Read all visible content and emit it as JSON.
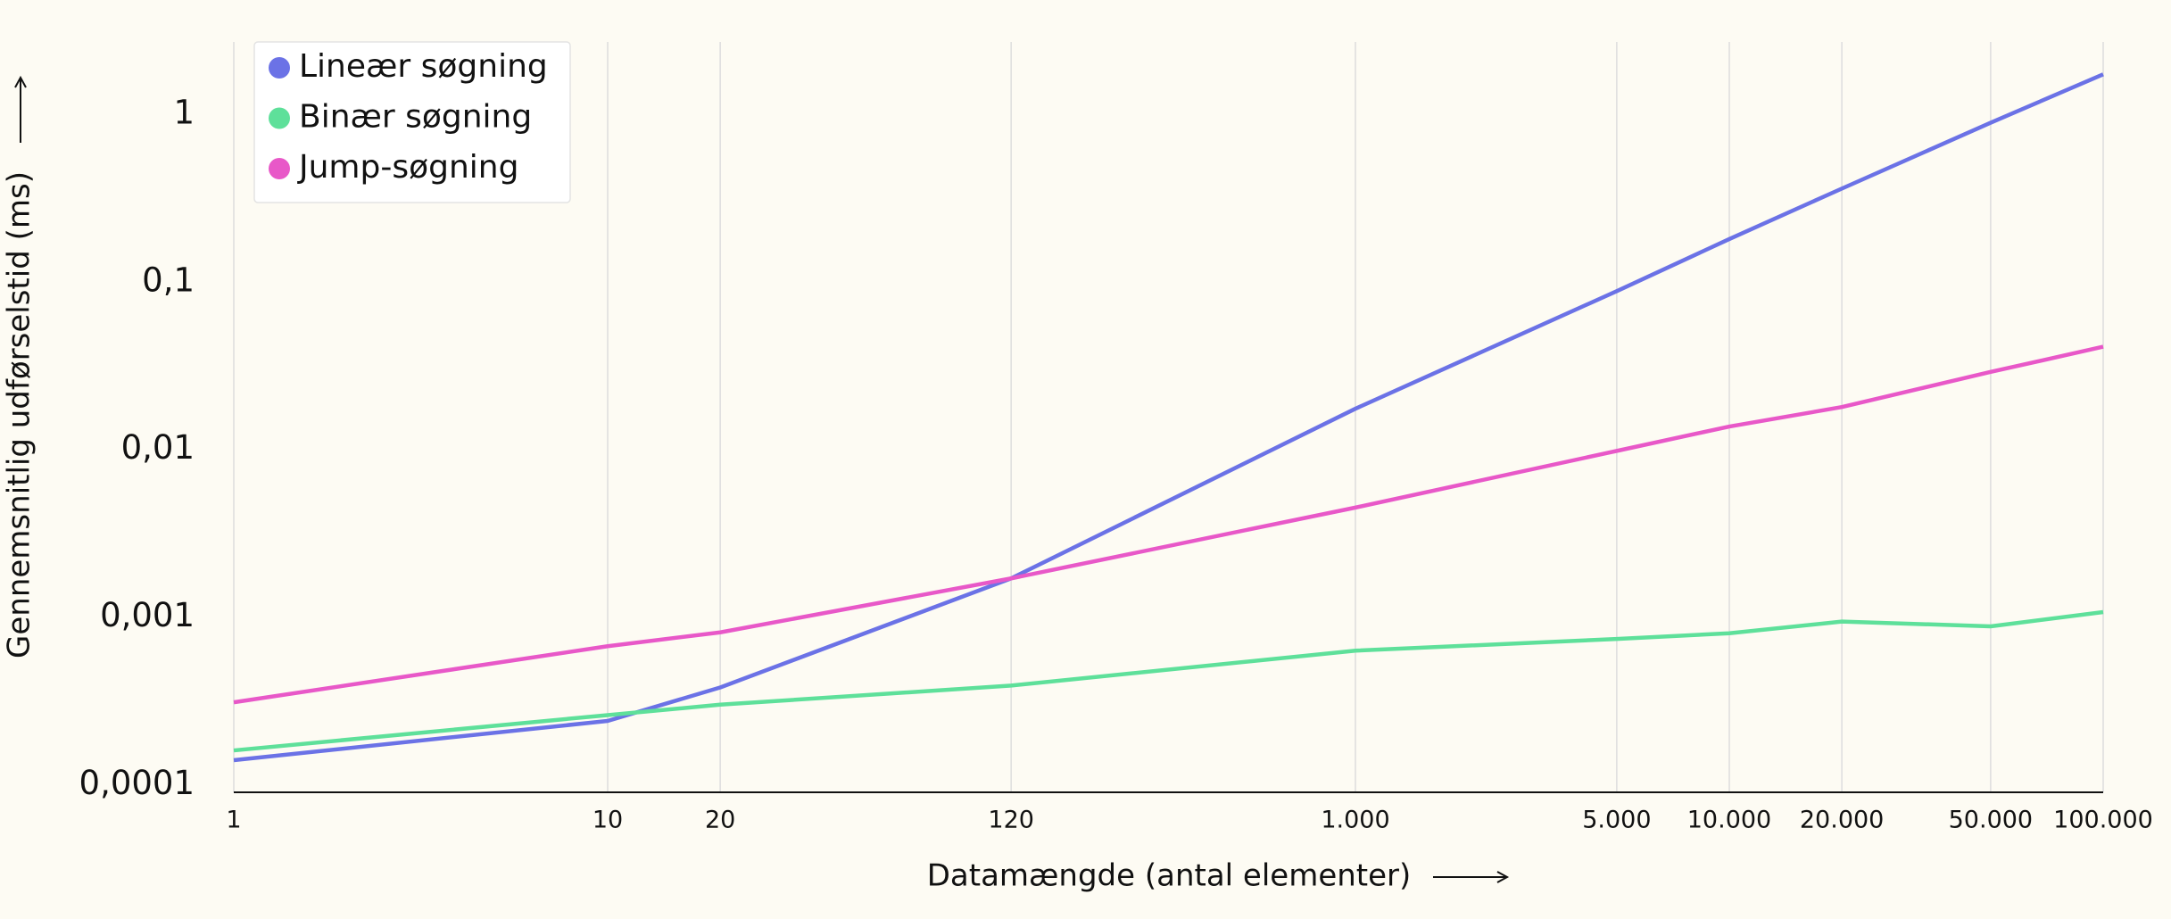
{
  "chart_data": {
    "type": "line",
    "xlabel": "Datamængde (antal elementer)",
    "ylabel": "Gennemsnitlig udførselstid (ms)",
    "x": [
      1,
      10,
      20,
      120,
      1000,
      5000,
      10000,
      20000,
      50000,
      100000
    ],
    "series": [
      {
        "name": "Lineær søgning",
        "color": "#6b72e6",
        "values": [
          0.00014,
          0.00024,
          0.00038,
          0.0017,
          0.0175,
          0.088,
          0.18,
          0.36,
          0.89,
          1.73
        ]
      },
      {
        "name": "Binær søgning",
        "color": "#5ee09a",
        "values": [
          0.00016,
          0.00026,
          0.0003,
          0.00039,
          0.00063,
          0.00074,
          0.0008,
          0.00094,
          0.00088,
          0.00107
        ]
      },
      {
        "name": "Jump-søgning",
        "color": "#e858c8",
        "values": [
          0.00031,
          0.00067,
          0.00081,
          0.0017,
          0.0045,
          0.0098,
          0.0137,
          0.0179,
          0.029,
          0.041
        ]
      }
    ],
    "xscale": "log",
    "yscale": "log",
    "xlim": [
      1,
      100000
    ],
    "ylim": [
      9e-05,
      2.7
    ],
    "xticks": [
      1,
      10,
      20,
      120,
      {
        "value": 1000,
        "label": "1.000"
      },
      {
        "value": 5000,
        "label": "5.000"
      },
      {
        "value": 10000,
        "label": "10.000"
      },
      {
        "value": 20000,
        "label": "20.000"
      },
      {
        "value": 50000,
        "label": "50.000"
      },
      {
        "value": 100000,
        "label": "100.000"
      }
    ],
    "yticks": [
      {
        "value": 0.0001,
        "label": "0,0001"
      },
      {
        "value": 0.001,
        "label": "0,001"
      },
      {
        "value": 0.01,
        "label": "0,01"
      },
      {
        "value": 0.1,
        "label": "0,1"
      },
      1
    ],
    "xgrid": true,
    "ygrid": false,
    "legend": "upper left"
  }
}
